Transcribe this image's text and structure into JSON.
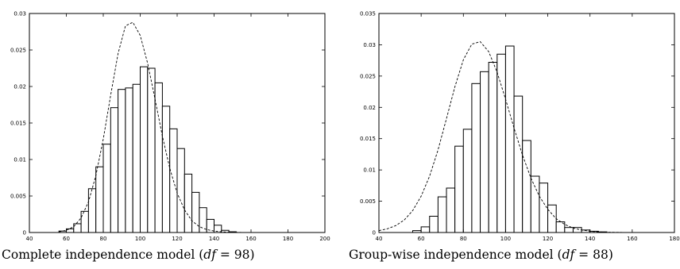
{
  "chart_data": [
    {
      "type": "bar",
      "title": "",
      "xlabel": "",
      "ylabel": "",
      "xlim": [
        40,
        200
      ],
      "ylim": [
        0,
        0.03
      ],
      "grid": false,
      "xticks": [
        "40",
        "60",
        "80",
        "100",
        "120",
        "140",
        "160",
        "180",
        "200"
      ],
      "yticks": [
        "0",
        "0.005",
        "0.01",
        "0.015",
        "0.02",
        "0.025",
        "0.03"
      ],
      "bin_width": 4,
      "histogram": {
        "bin_starts": [
          56,
          60,
          64,
          68,
          72,
          76,
          80,
          84,
          88,
          92,
          96,
          100,
          104,
          108,
          112,
          116,
          120,
          124,
          128,
          132,
          136,
          140,
          144,
          148
        ],
        "values": [
          0.0002,
          0.0005,
          0.0012,
          0.0029,
          0.006,
          0.009,
          0.0121,
          0.0171,
          0.0196,
          0.0198,
          0.0203,
          0.0227,
          0.0225,
          0.0205,
          0.0173,
          0.0142,
          0.0115,
          0.008,
          0.0055,
          0.0034,
          0.0018,
          0.001,
          0.0003,
          0.0001
        ]
      },
      "curve": {
        "style": "dashed",
        "x": [
          56,
          60,
          64,
          68,
          72,
          76,
          80,
          84,
          88,
          92,
          96,
          100,
          104,
          108,
          112,
          116,
          120,
          124,
          128,
          132,
          136,
          140,
          144,
          148,
          152,
          156,
          160
        ],
        "y": [
          0.0001,
          0.0003,
          0.0008,
          0.002,
          0.0042,
          0.0078,
          0.0128,
          0.0188,
          0.0245,
          0.0283,
          0.0288,
          0.027,
          0.0232,
          0.0183,
          0.0132,
          0.0088,
          0.0054,
          0.0031,
          0.0016,
          0.0008,
          0.0004,
          0.0002,
          0.0001,
          4e-05,
          2e-05,
          1e-05,
          0.0
        ]
      }
    },
    {
      "type": "bar",
      "title": "",
      "xlabel": "",
      "ylabel": "",
      "xlim": [
        40,
        180
      ],
      "ylim": [
        0,
        0.035
      ],
      "grid": false,
      "xticks": [
        "40",
        "60",
        "80",
        "100",
        "120",
        "140",
        "160",
        "180"
      ],
      "yticks": [
        "0",
        "0.005",
        "0.01",
        "0.015",
        "0.02",
        "0.025",
        "0.03",
        "0.035"
      ],
      "bin_width": 4,
      "histogram": {
        "bin_starts": [
          56,
          60,
          64,
          68,
          72,
          76,
          80,
          84,
          88,
          92,
          96,
          100,
          104,
          108,
          112,
          116,
          120,
          124,
          128,
          132,
          136,
          140,
          144
        ],
        "values": [
          0.0003,
          0.0009,
          0.0026,
          0.0057,
          0.0071,
          0.0138,
          0.0165,
          0.0238,
          0.0257,
          0.0272,
          0.0285,
          0.0298,
          0.0218,
          0.0147,
          0.009,
          0.0079,
          0.0044,
          0.0017,
          0.0008,
          0.0008,
          0.0004,
          0.0002,
          0.0001
        ]
      },
      "curve": {
        "style": "dashed",
        "x": [
          40,
          44,
          48,
          52,
          56,
          60,
          64,
          68,
          72,
          76,
          80,
          84,
          88,
          92,
          96,
          100,
          104,
          108,
          112,
          116,
          120,
          124,
          128,
          132,
          136,
          140,
          144,
          148,
          152,
          156,
          160,
          164,
          168,
          172,
          176,
          180
        ],
        "y": [
          0.0003,
          0.0006,
          0.0011,
          0.002,
          0.0035,
          0.0058,
          0.009,
          0.0132,
          0.0182,
          0.0233,
          0.0276,
          0.0301,
          0.0305,
          0.0289,
          0.0256,
          0.0213,
          0.0167,
          0.0124,
          0.0087,
          0.0058,
          0.0037,
          0.0022,
          0.0013,
          0.0007,
          0.0004,
          0.0002,
          0.0001,
          5e-05,
          2e-05,
          1e-05,
          0.0,
          0.0,
          0.0,
          0.0,
          0.0,
          0.0
        ]
      }
    }
  ],
  "captions": [
    {
      "before": "Complete independence model (",
      "math": "df",
      "after": " = 98)"
    },
    {
      "before": "Group-wise independence model (",
      "math": "df",
      "after": " = 88)"
    }
  ]
}
